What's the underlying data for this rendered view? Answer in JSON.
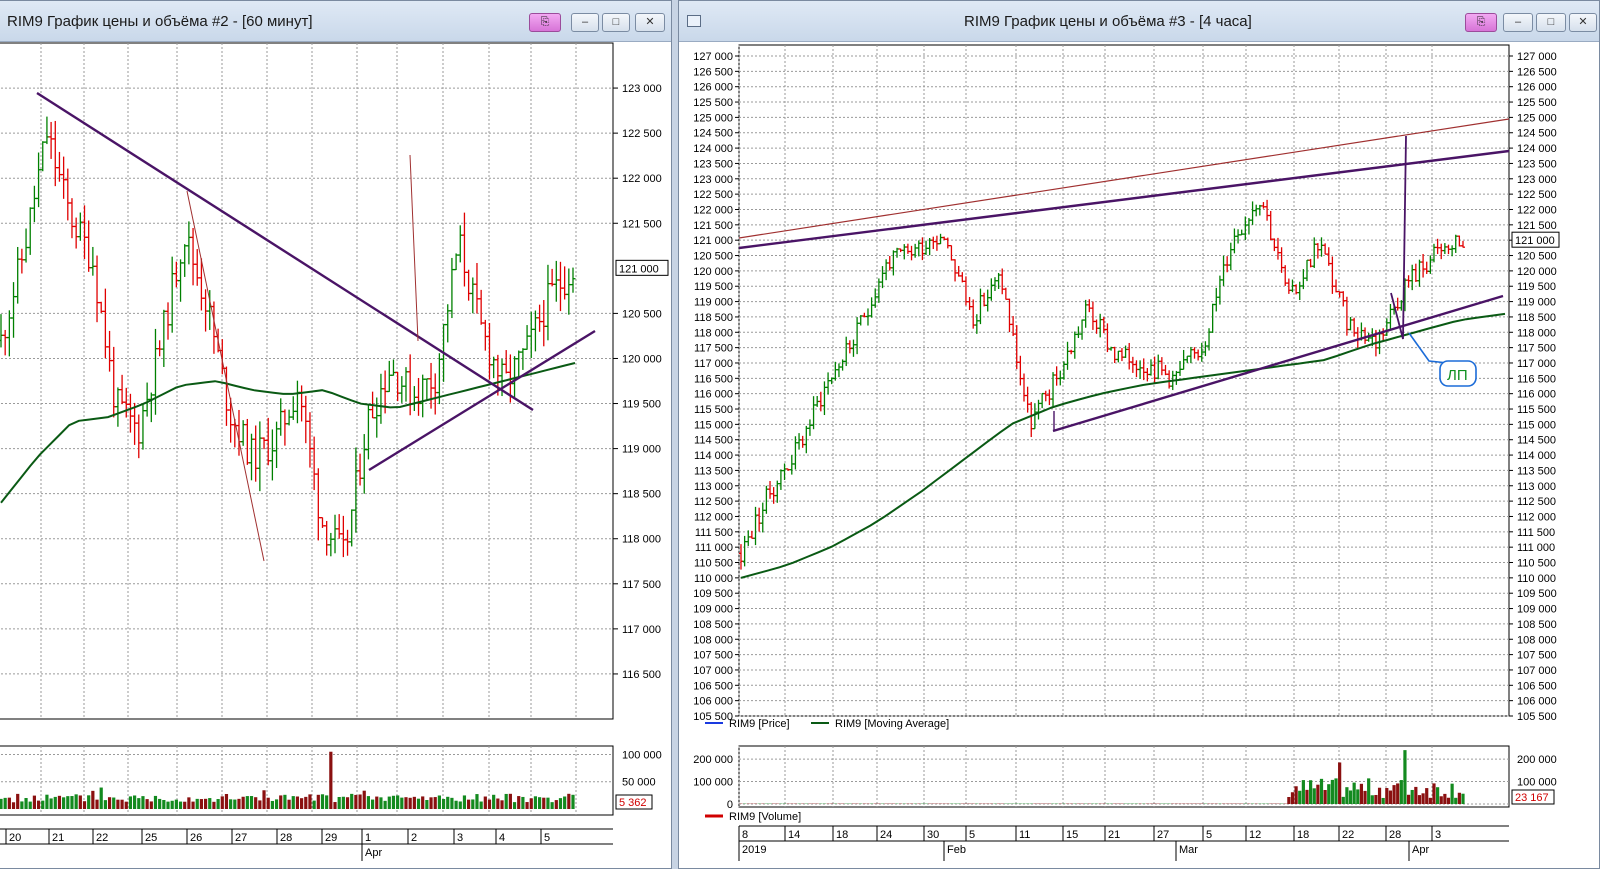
{
  "left_window": {
    "title": "RIM9 График цены и объёма #2 - [60 минут]",
    "price_ticks": [
      {
        "v": 123000,
        "label": "123 000"
      },
      {
        "v": 122500,
        "label": "122 500"
      },
      {
        "v": 122000,
        "label": "122 000"
      },
      {
        "v": 121500,
        "label": "121 500"
      },
      {
        "v": 120500,
        "label": "120 500"
      },
      {
        "v": 120000,
        "label": "120 000"
      },
      {
        "v": 119500,
        "label": "119 500"
      },
      {
        "v": 119000,
        "label": "119 000"
      },
      {
        "v": 118500,
        "label": "118 500"
      },
      {
        "v": 118000,
        "label": "118 000"
      },
      {
        "v": 117500,
        "label": "117 500"
      },
      {
        "v": 117000,
        "label": "117 000"
      },
      {
        "v": 116500,
        "label": "116 500"
      }
    ],
    "last_price_label": "121 000",
    "volume_ticks": [
      {
        "v": 100000,
        "label": "100 000"
      },
      {
        "v": 50000,
        "label": "50 000"
      }
    ],
    "last_volume_label": "5 362",
    "date_ticks": [
      "20",
      "21",
      "22",
      "25",
      "26",
      "27",
      "28",
      "29",
      "1",
      "2",
      "3",
      "4",
      "5"
    ],
    "month_label": "Apr"
  },
  "right_window": {
    "title": "RIM9 График цены и объёма #3 - [4 часа]",
    "price_ticks": [
      "127 000",
      "126 500",
      "126 000",
      "125 500",
      "125 000",
      "124 500",
      "124 000",
      "123 500",
      "123 000",
      "122 500",
      "122 000",
      "121 500",
      "121 000",
      "120 500",
      "120 000",
      "119 500",
      "119 000",
      "118 500",
      "118 000",
      "117 500",
      "117 000",
      "116 500",
      "116 000",
      "115 500",
      "115 000",
      "114 500",
      "114 000",
      "113 500",
      "113 000",
      "112 500",
      "112 000",
      "111 500",
      "111 000",
      "110 500",
      "110 000",
      "109 500",
      "109 000",
      "108 500",
      "108 000",
      "107 500",
      "107 000",
      "106 500",
      "106 000",
      "105 500"
    ],
    "last_price_label": "121 000",
    "legend": {
      "price": "RIM9 [Price]",
      "ma": "RIM9 [Moving Average]",
      "volume": "RIM9 [Volume]"
    },
    "annotation": "ЛП",
    "volume_ticks": [
      {
        "v": 200000,
        "label": "200 000"
      },
      {
        "v": 100000,
        "label": "100 000"
      },
      {
        "v": 0,
        "label": "0"
      }
    ],
    "last_volume_label": "23 167",
    "date_ticks": [
      "8",
      "14",
      "18",
      "24",
      "30",
      "5",
      "11",
      "15",
      "21",
      "27",
      "5",
      "12",
      "18",
      "22",
      "28",
      "3"
    ],
    "month_labels": [
      "2019",
      "Feb",
      "Mar",
      "Apr"
    ]
  },
  "colors": {
    "up_bar": "#008000",
    "down_bar": "#e00000",
    "moving_average": "#0a5a14",
    "trend_line": "#4a1466",
    "thin_line": "#a03030",
    "volume_up": "#138a1f",
    "volume_down": "#8a1010",
    "price_legend": "#1a3ae0",
    "annotation": "#1c6cd8"
  },
  "icons": {
    "pin": "pin-icon",
    "minimize": "minimize-icon",
    "maximize": "maximize-icon",
    "close": "close-icon",
    "window": "window-icon"
  }
}
